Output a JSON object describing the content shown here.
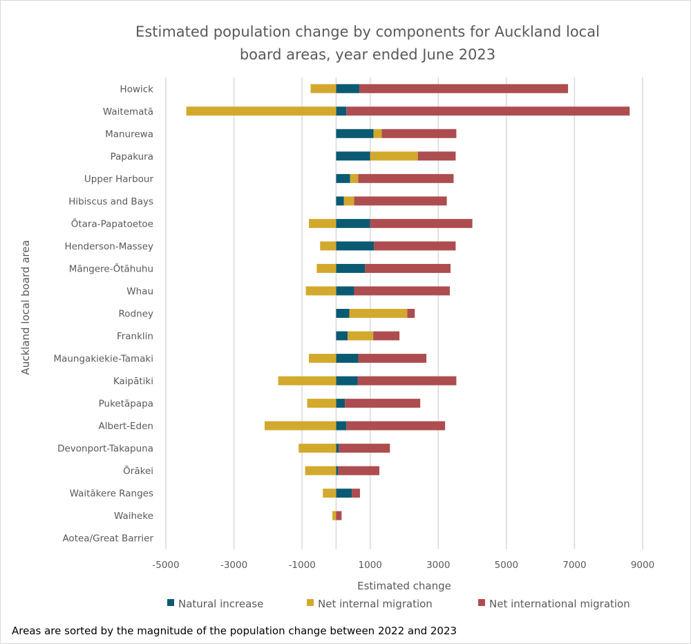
{
  "chart_data": {
    "type": "bar",
    "orientation": "horizontal",
    "stacked": true,
    "title": "Estimated population change by components for Auckland local board areas, year ended June 2023",
    "title_lines": [
      "Estimated population change by components for Auckland local",
      "board areas, year ended June 2023"
    ],
    "xlabel": "Estimated change",
    "ylabel": "Auckland local board area",
    "xlim": [
      -5000,
      9000
    ],
    "xticks": [
      -5000,
      -3000,
      -1000,
      1000,
      3000,
      5000,
      7000,
      9000
    ],
    "grid": true,
    "legend_position": "bottom",
    "categories": [
      "Howick",
      "Waitematā",
      "Manurewa",
      "Papakura",
      "Upper Harbour",
      "Hibiscus and Bays",
      "Ōtara-Papatoetoe",
      "Henderson-Massey",
      "Māngere-Ōtāhuhu",
      "Whau",
      "Rodney",
      "Franklin",
      "Maungakiekie-Tamaki",
      "Kaipātiki",
      "Puketāpapa",
      "Albert-Eden",
      "Devonport-Takapuna",
      "Ōrākei",
      "Waitākere Ranges",
      "Waiheke",
      "Aotea/Great Barrier"
    ],
    "series": [
      {
        "name": "Natural increase",
        "color": "#0b5a73",
        "values": [
          680,
          300,
          1100,
          1000,
          410,
          230,
          1000,
          1110,
          850,
          530,
          390,
          340,
          650,
          630,
          260,
          300,
          80,
          60,
          460,
          0,
          0
        ]
      },
      {
        "name": "Net internal migration",
        "color": "#d3a92d",
        "values": [
          -750,
          -4400,
          240,
          1400,
          240,
          300,
          -800,
          -470,
          -570,
          -890,
          1700,
          750,
          -800,
          -1700,
          -850,
          -2100,
          -1100,
          -910,
          -390,
          -110,
          0
        ]
      },
      {
        "name": "Net international migration",
        "color": "#ad4d4f",
        "values": [
          6130,
          8320,
          2190,
          1110,
          2800,
          2720,
          3000,
          2400,
          2510,
          2810,
          220,
          770,
          2000,
          2900,
          2210,
          2900,
          1500,
          1210,
          240,
          160,
          0
        ]
      }
    ]
  },
  "footnote": "Areas are sorted by the magnitude of the population change between 2022 and 2023"
}
